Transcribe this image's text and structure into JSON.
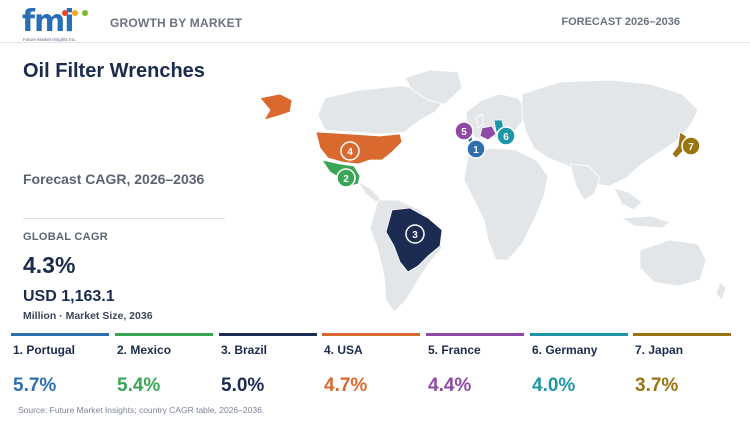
{
  "header": {
    "logo_text": "fmi",
    "logo_sub": "Future Market Insights Inc.",
    "left": "GROWTH BY MARKET",
    "right": "FORECAST 2026–2036"
  },
  "title": "Oil Filter Wrenches",
  "subtitle": "Forecast CAGR, 2026–2036",
  "global": {
    "label": "GLOBAL CAGR",
    "value": "4.3%",
    "market_value": "USD 1,163.1",
    "market_note": "Million · Market Size, 2036"
  },
  "countries": [
    {
      "rank": "1",
      "label": "1. Portugal",
      "cagr": "5.7%",
      "color": "#2e6fb0"
    },
    {
      "rank": "2",
      "label": "2. Mexico",
      "cagr": "5.4%",
      "color": "#3aa655"
    },
    {
      "rank": "3",
      "label": "3. Brazil",
      "cagr": "5.0%",
      "color": "#1b2b52"
    },
    {
      "rank": "4",
      "label": "4. USA",
      "cagr": "4.7%",
      "color": "#d9692e"
    },
    {
      "rank": "5",
      "label": "5. France",
      "cagr": "4.4%",
      "color": "#8e4aa4"
    },
    {
      "rank": "6",
      "label": "6. Germany",
      "cagr": "4.0%",
      "color": "#1f96a6"
    },
    {
      "rank": "7",
      "label": "7. Japan",
      "cagr": "3.7%",
      "color": "#9a7411"
    }
  ],
  "map_colors": {
    "land": "#e3e6e9",
    "border": "#ffffff"
  },
  "source": "Source: Future Market Insights; country CAGR table, 2026–2036."
}
